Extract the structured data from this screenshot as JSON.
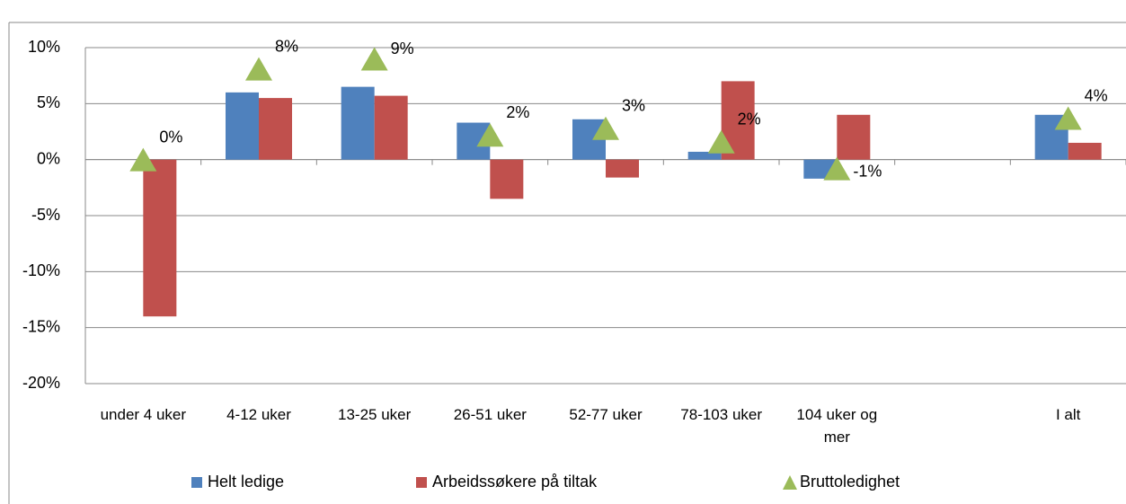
{
  "chart_data": {
    "type": "bar",
    "categories": [
      "under 4 uker",
      "4-12 uker",
      "13-25 uker",
      "26-51 uker",
      "52-77 uker",
      "78-103 uker",
      "104 uker og mer",
      null,
      "I alt"
    ],
    "series": [
      {
        "name": "Helt ledige",
        "type": "bar",
        "color": "#4f81bd",
        "values": [
          null,
          6.0,
          6.5,
          3.3,
          3.6,
          0.7,
          -1.7,
          null,
          4.0
        ]
      },
      {
        "name": "Arbeidssøkere på tiltak",
        "type": "bar",
        "color": "#c0504d",
        "values": [
          -14.0,
          5.5,
          5.7,
          -3.5,
          -1.6,
          7.0,
          4.0,
          null,
          1.5
        ]
      },
      {
        "name": "Bruttoledighet",
        "type": "triangle",
        "color": "#9bbb59",
        "values": [
          0,
          8.1,
          9.0,
          2.2,
          2.8,
          1.6,
          -0.8,
          null,
          3.7
        ],
        "value_labels": [
          "0%",
          "8%",
          "9%",
          "2%",
          "3%",
          "2%",
          "-1%",
          null,
          "4%"
        ]
      }
    ],
    "ylim": [
      -20,
      10
    ],
    "yticks": [
      {
        "value": -20,
        "label": "-20%"
      },
      {
        "value": -15,
        "label": "-15%"
      },
      {
        "value": -10,
        "label": "-10%"
      },
      {
        "value": -5,
        "label": "-5%"
      },
      {
        "value": 0,
        "label": "0%"
      },
      {
        "value": 5,
        "label": "5%"
      },
      {
        "value": 10,
        "label": "10%"
      }
    ],
    "grid": true,
    "legend": "bottom"
  }
}
